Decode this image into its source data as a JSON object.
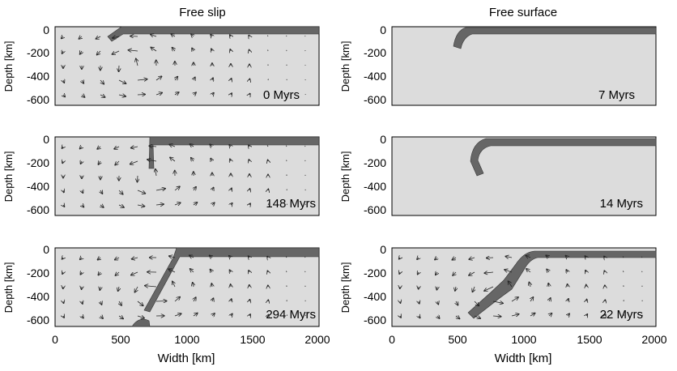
{
  "figure": {
    "column_titles": [
      "Free slip",
      "Free surface"
    ],
    "y_axis_label": "Depth [km]",
    "x_axis_label": "Width [km]",
    "y_ticks": [
      "0",
      "-200",
      "-400",
      "-600"
    ],
    "x_ticks": [
      "0",
      "500",
      "1000",
      "1500",
      "2000"
    ],
    "panels": [
      {
        "column": "Free slip",
        "time_label": "0 Myrs"
      },
      {
        "column": "Free surface",
        "time_label": "7 Myrs"
      },
      {
        "column": "Free slip",
        "time_label": "148 Myrs"
      },
      {
        "column": "Free surface",
        "time_label": "14 Myrs"
      },
      {
        "column": "Free slip",
        "time_label": "294 Myrs"
      },
      {
        "column": "Free surface",
        "time_label": "22 Myrs"
      }
    ],
    "colors": {
      "background": "#dcdcdc",
      "slab": "#666666",
      "arrows": "#222222"
    }
  }
}
